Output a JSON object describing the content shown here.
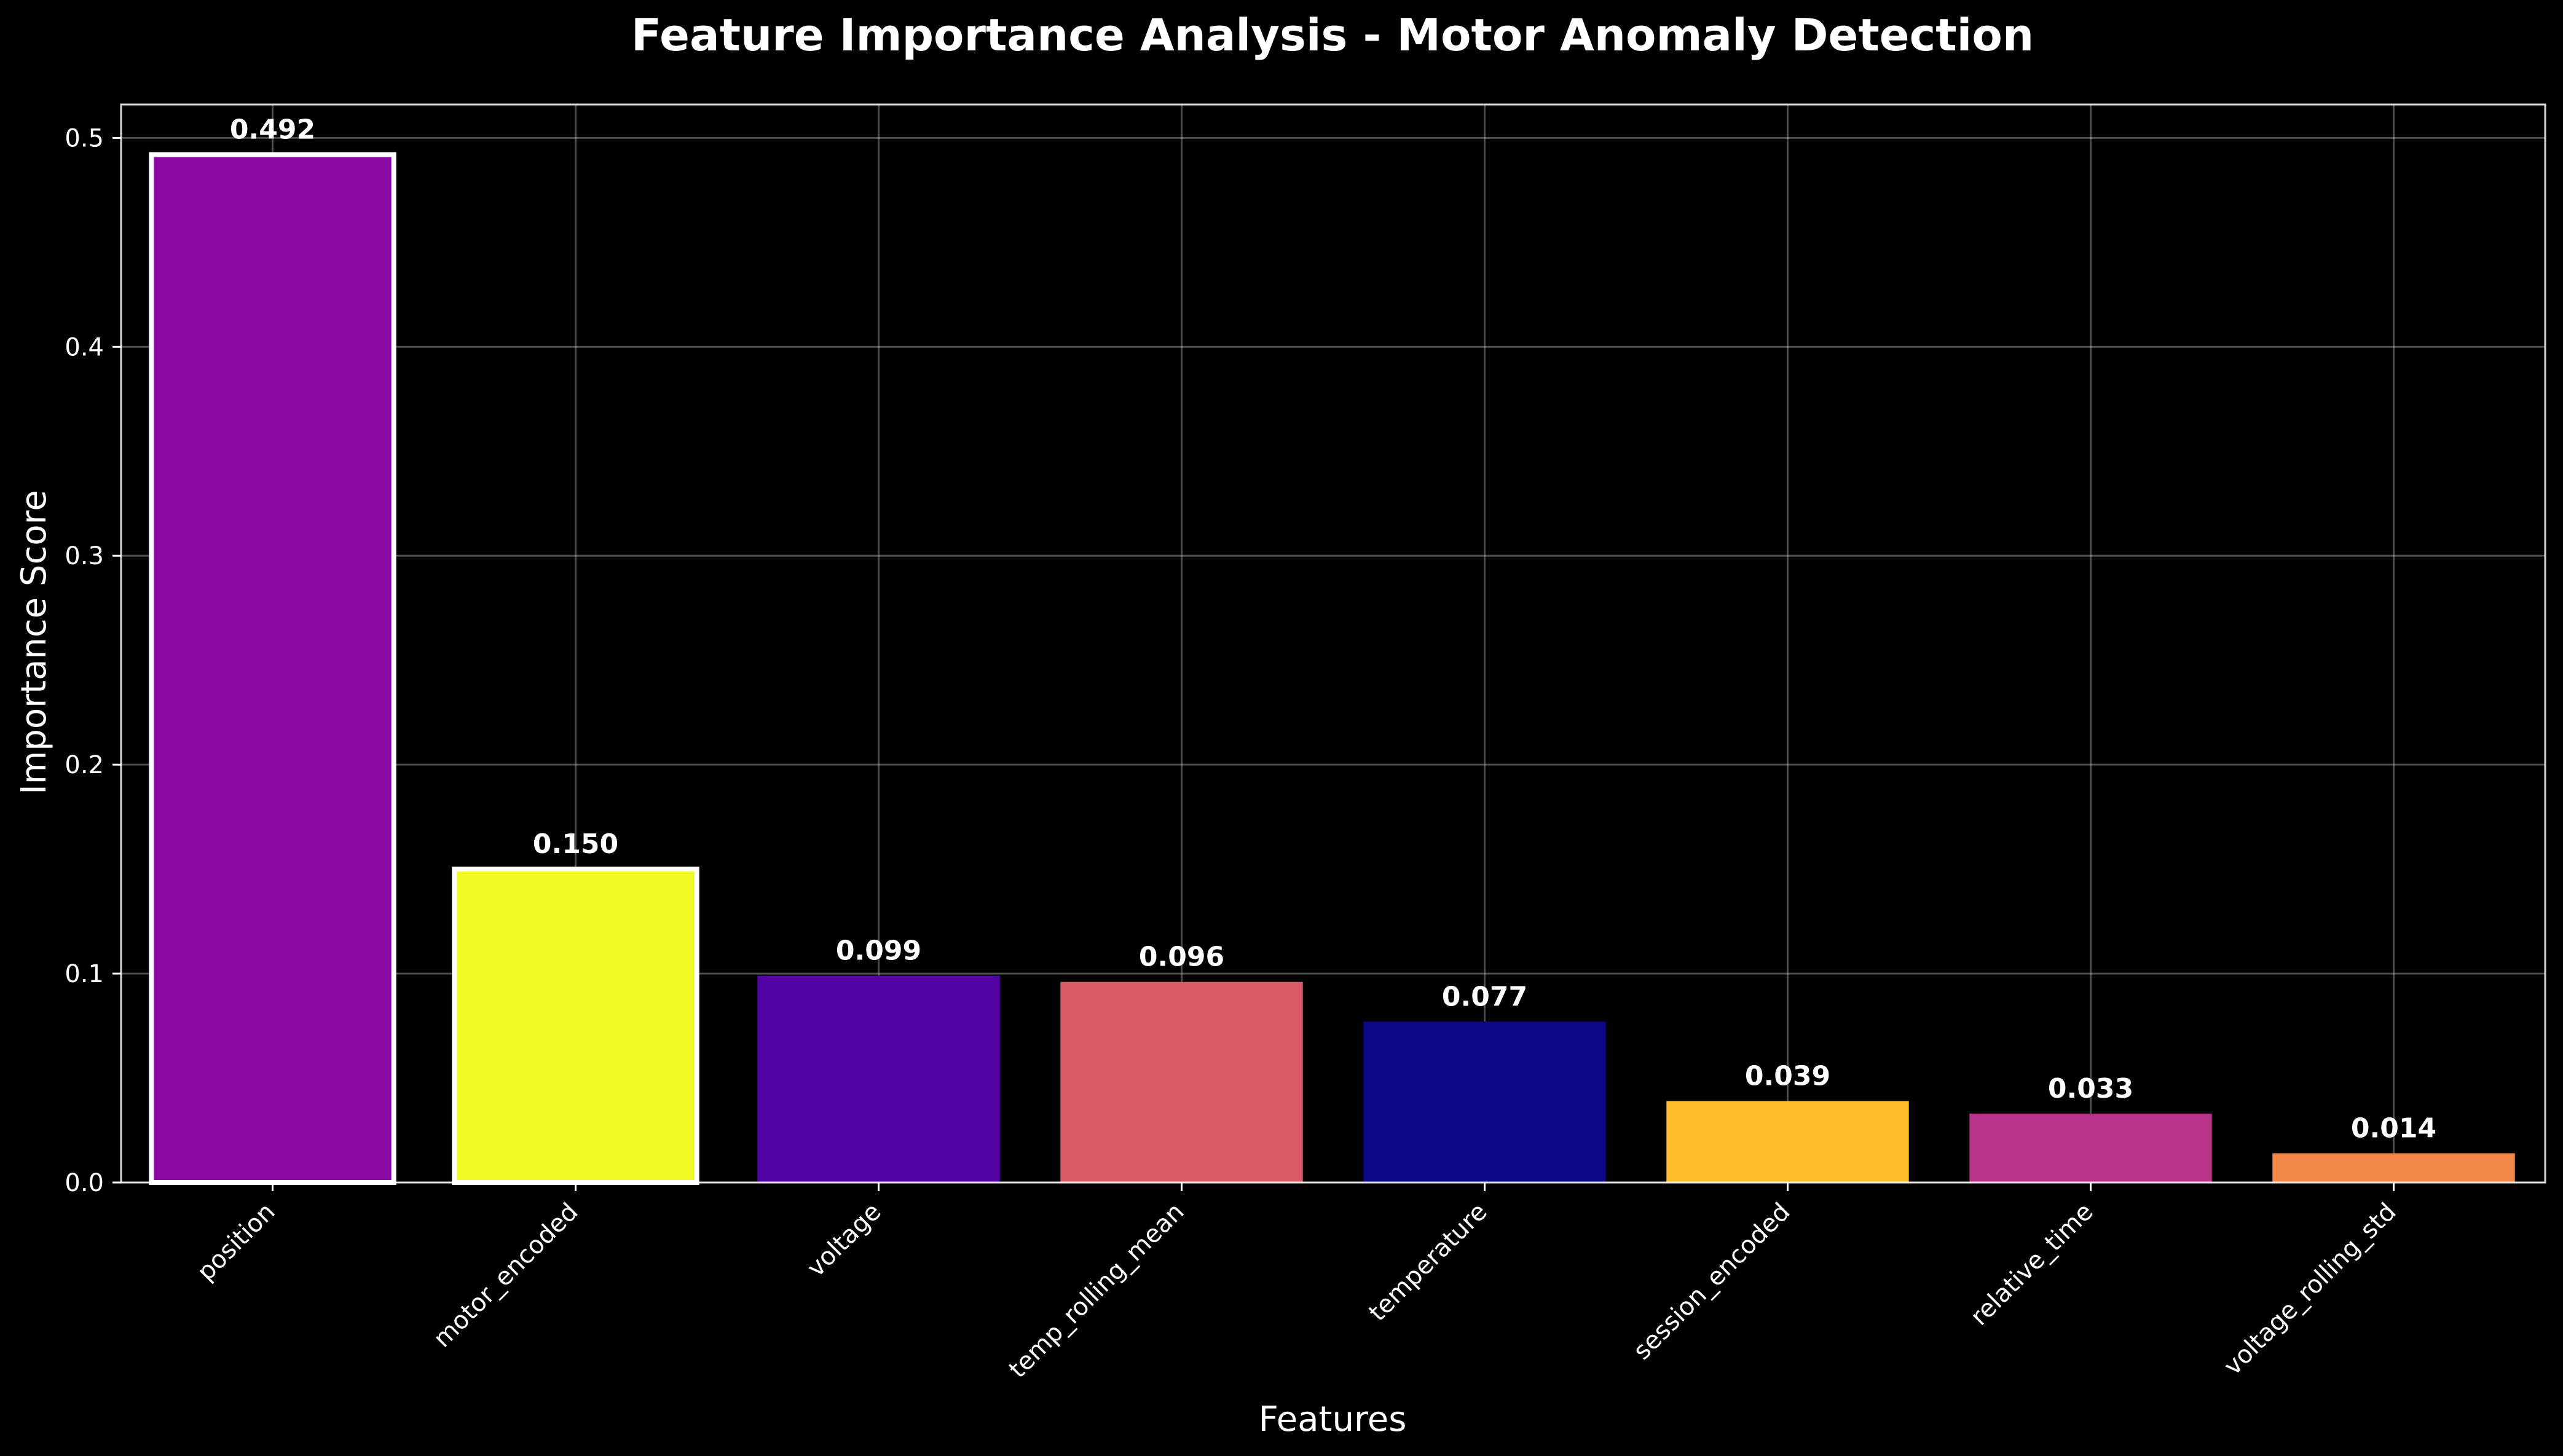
{
  "chart_data": {
    "type": "bar",
    "title": "Feature Importance Analysis - Motor Anomaly Detection",
    "xlabel": "Features",
    "ylabel": "Importance Score",
    "ylim": [
      0,
      0.516
    ],
    "yticks": [
      0.0,
      0.1,
      0.2,
      0.3,
      0.4,
      0.5
    ],
    "ytick_labels": [
      "0.0",
      "0.1",
      "0.2",
      "0.3",
      "0.4",
      "0.5"
    ],
    "grid": true,
    "categories": [
      "position",
      "motor_encoded",
      "voltage",
      "temp_rolling_mean",
      "temperature",
      "session_encoded",
      "relative_time",
      "voltage_rolling_std"
    ],
    "values": [
      0.492,
      0.15,
      0.099,
      0.096,
      0.077,
      0.039,
      0.033,
      0.014
    ],
    "value_labels": [
      "0.492",
      "0.150",
      "0.099",
      "0.096",
      "0.077",
      "0.039",
      "0.033",
      "0.014"
    ],
    "bar_colors": [
      "#8b0aa5",
      "#f0f921",
      "#5302a3",
      "#db5c68",
      "#0d0887",
      "#febd2a",
      "#b83289",
      "#f48849"
    ],
    "highlighted": [
      true,
      true,
      false,
      false,
      false,
      false,
      false,
      false
    ],
    "colors": {
      "background": "#000000",
      "text": "#ffffff",
      "highlight_edge": "#ffffff"
    }
  }
}
